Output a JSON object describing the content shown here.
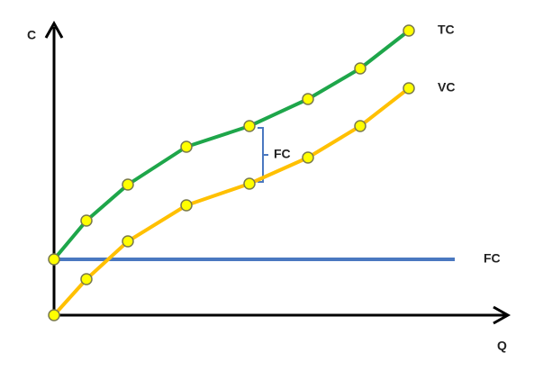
{
  "chart_data": {
    "type": "line",
    "x_label": "Q",
    "y_label": "C",
    "xlim": [
      0,
      505
    ],
    "ylim": [
      0,
      322
    ],
    "annotation": "FC",
    "series": [
      {
        "name": "TC",
        "color": "#1ea64a",
        "markers": true,
        "x": [
          0,
          36,
          82,
          147,
          217,
          282,
          340,
          394
        ],
        "values": [
          62,
          105,
          145,
          187,
          210,
          240,
          274,
          316
        ]
      },
      {
        "name": "VC",
        "color": "#ffc000",
        "markers": true,
        "x": [
          0,
          36,
          82,
          147,
          217,
          282,
          340,
          394
        ],
        "values": [
          0,
          40,
          82,
          122,
          146,
          175,
          210,
          252
        ]
      },
      {
        "name": "FC",
        "color": "#4a78c0",
        "markers": false,
        "x": [
          0,
          445
        ],
        "values": [
          62,
          62
        ]
      }
    ]
  }
}
